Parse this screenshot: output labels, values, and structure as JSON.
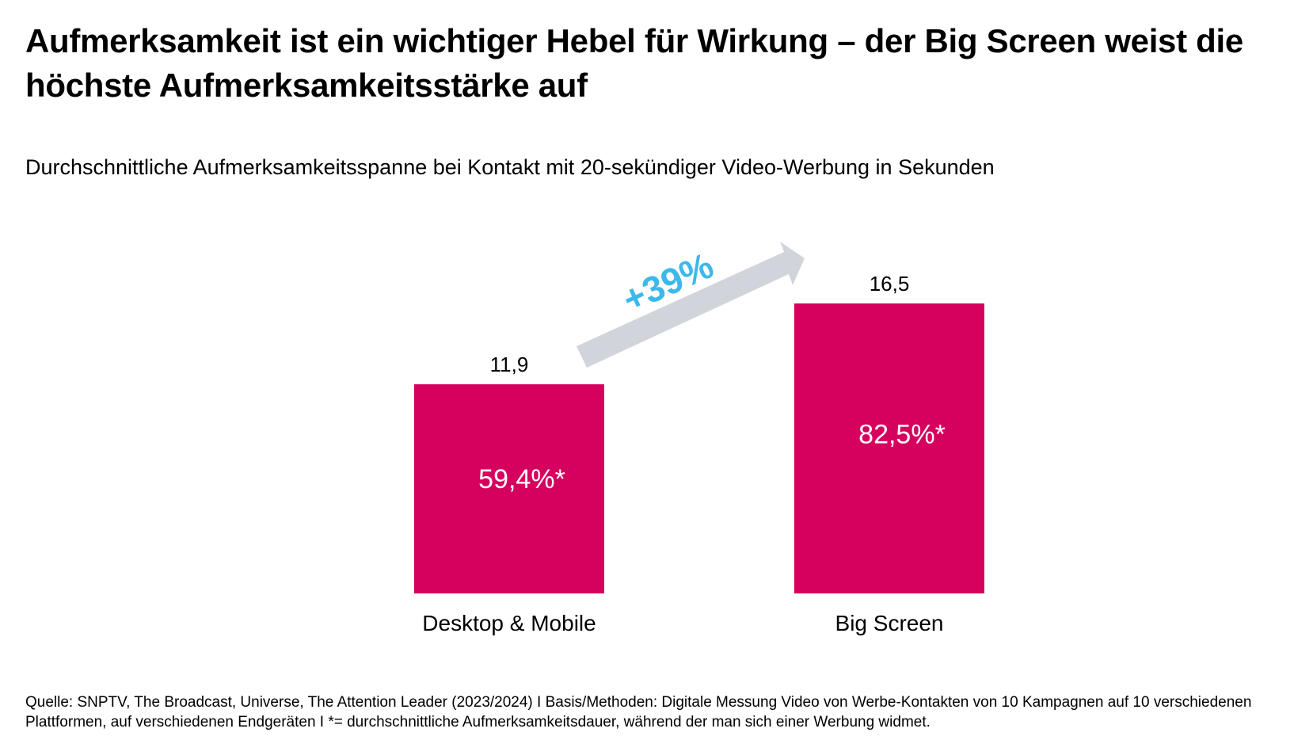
{
  "title": "Aufmerksamkeit ist ein wichtiger Hebel für Wirkung – der Big Screen weist die höchste Aufmerksamkeitsstärke auf",
  "subtitle": "Durchschnittliche Aufmerksamkeitsspanne bei Kontakt mit 20-sekündiger Video-Werbung in Sekunden",
  "footer": "Quelle: SNPTV, The Broadcast, Universe, The Attention Leader (2023/2024) I Basis/Methoden: Digitale Messung Video von Werbe-Kontakten von 10 Kampagnen auf 10 verschiedenen Plattformen, auf verschiedenen Endgeräten I *= durchschnittliche Aufmerksamkeitsdauer, während der man sich einer Werbung widmet.",
  "chart_data": {
    "type": "bar",
    "categories": [
      "Desktop & Mobile",
      "Big Screen"
    ],
    "values": [
      11.9,
      16.5
    ],
    "value_labels": [
      "11,9",
      "16,5"
    ],
    "inner_labels": [
      "59,4%*",
      "82,5%*"
    ],
    "annotation": "+39%",
    "ylabel": "Sekunden",
    "ylim": [
      0,
      16.5
    ],
    "grid": false,
    "colors": {
      "bar": "#d6005f",
      "arrow": "#d1d5db",
      "annotation": "#3db8ea"
    }
  }
}
